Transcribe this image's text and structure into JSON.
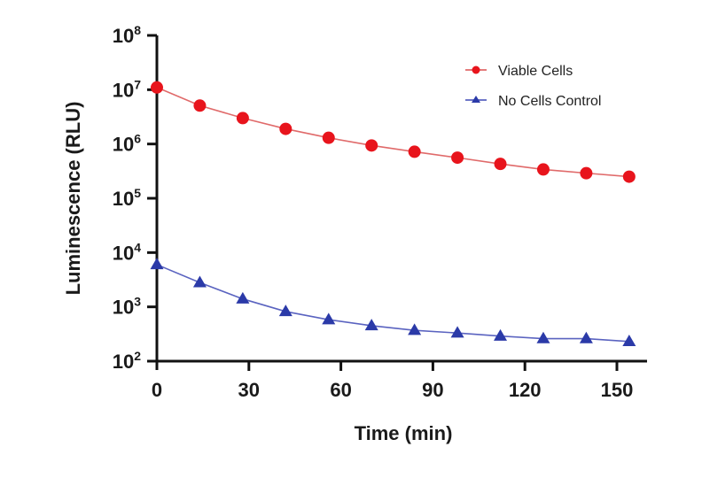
{
  "chart_data": {
    "type": "line",
    "title": "",
    "xlabel": "Time (min)",
    "ylabel": "Luminescence (RLU)",
    "yscale": "log",
    "xlim": [
      0,
      160
    ],
    "ylim": [
      100,
      100000000
    ],
    "x_ticks": [
      0,
      30,
      60,
      90,
      120,
      150
    ],
    "x_tick_labels": [
      "0",
      "30",
      "60",
      "90",
      "120",
      "150"
    ],
    "y_ticks": [
      100,
      1000,
      10000,
      100000,
      1000000,
      10000000,
      100000000
    ],
    "y_tick_labels": [
      {
        "base": "10",
        "exp": "2"
      },
      {
        "base": "10",
        "exp": "3"
      },
      {
        "base": "10",
        "exp": "4"
      },
      {
        "base": "10",
        "exp": "5"
      },
      {
        "base": "10",
        "exp": "6"
      },
      {
        "base": "10",
        "exp": "7"
      },
      {
        "base": "10",
        "exp": "8"
      }
    ],
    "grid": false,
    "legend_position": "top-right",
    "x": [
      0,
      14,
      28,
      42,
      56,
      70,
      84,
      98,
      112,
      126,
      140,
      154
    ],
    "series": [
      {
        "name": "Viable Cells",
        "color": "#e8141c",
        "line_color": "#e06a6a",
        "marker": "circle",
        "values": [
          11000000,
          5100000,
          3000000,
          1900000,
          1300000,
          940000,
          720000,
          560000,
          430000,
          340000,
          290000,
          250000
        ]
      },
      {
        "name": "No Cells Control",
        "color": "#2b3aa8",
        "line_color": "#5a63c0",
        "marker": "triangle",
        "values": [
          6000,
          2800,
          1400,
          820,
          580,
          450,
          370,
          330,
          290,
          260,
          260,
          230
        ]
      }
    ]
  }
}
